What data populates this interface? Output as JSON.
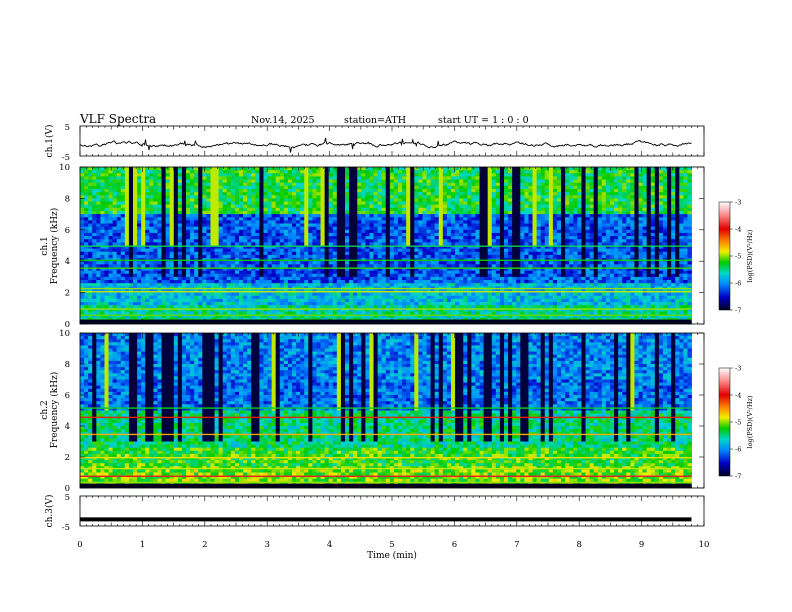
{
  "header": {
    "title": "VLF  Spectra",
    "date": "Nov.14, 2025",
    "station": "station=ATH",
    "start_ut": "start  UT  =   1 : 0  : 0"
  },
  "chart_data": [
    {
      "type": "line",
      "ylabel": "ch.1(V)",
      "ylim": [
        -5,
        5
      ],
      "yticks": [
        "5",
        "-5"
      ],
      "color": "#000000"
    },
    {
      "type": "heatmap",
      "ylabel": "ch.1\nFrequency (kHz)",
      "ylim": [
        0,
        10
      ],
      "yticks": [
        "10",
        "8",
        "6",
        "4",
        "2",
        "0"
      ],
      "colorbar": {
        "label": "log(PSD)(V²/Hz)",
        "range": [
          -7,
          -3
        ],
        "ticks": [
          "-3",
          "-4",
          "-5",
          "-6",
          "-7"
        ]
      }
    },
    {
      "type": "heatmap",
      "ylabel": "ch.2\nFrequency (kHz)",
      "ylim": [
        0,
        10
      ],
      "yticks": [
        "10",
        "8",
        "6",
        "4",
        "2",
        "0"
      ],
      "colorbar": {
        "label": "log(PSD)(V²/Hz)",
        "range": [
          -7,
          -3
        ],
        "ticks": [
          "-3",
          "-4",
          "-5",
          "-6",
          "-7"
        ]
      }
    },
    {
      "type": "line",
      "ylabel": "ch.3(V)",
      "ylim": [
        -5,
        5
      ],
      "yticks": [
        "5",
        "-5"
      ],
      "value": -2.8,
      "color": "#000000"
    }
  ],
  "xaxis": {
    "label": "Time (min)",
    "range": [
      0,
      10
    ],
    "ticks": [
      "0",
      "1",
      "2",
      "3",
      "4",
      "5",
      "6",
      "7",
      "8",
      "9",
      "10"
    ],
    "data_end": 9.8
  }
}
